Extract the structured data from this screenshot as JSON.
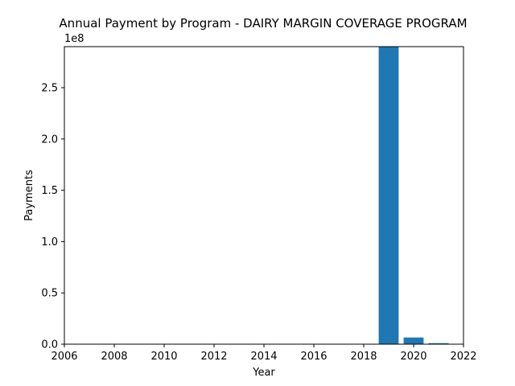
{
  "chart_data": {
    "type": "bar",
    "title": "Annual Payment by Program - DAIRY MARGIN COVERAGE PROGRAM",
    "xlabel": "Year",
    "ylabel": "Payments",
    "y_offset_label": "1e8",
    "x": [
      2019,
      2020,
      2021
    ],
    "values": [
      290000000,
      6500000,
      1000000
    ],
    "xlim": [
      2006,
      2022
    ],
    "ylim": [
      0,
      290000000
    ],
    "x_ticks": [
      2006,
      2008,
      2010,
      2012,
      2014,
      2016,
      2018,
      2020,
      2022
    ],
    "y_ticks": [
      0,
      50000000,
      100000000,
      150000000,
      200000000,
      250000000
    ],
    "y_tick_labels": [
      "0.0",
      "0.5",
      "1.0",
      "1.5",
      "2.0",
      "2.5"
    ],
    "bar_width_years": 0.8,
    "bar_color": "#1f77b4",
    "grid": false,
    "legend": "none"
  }
}
